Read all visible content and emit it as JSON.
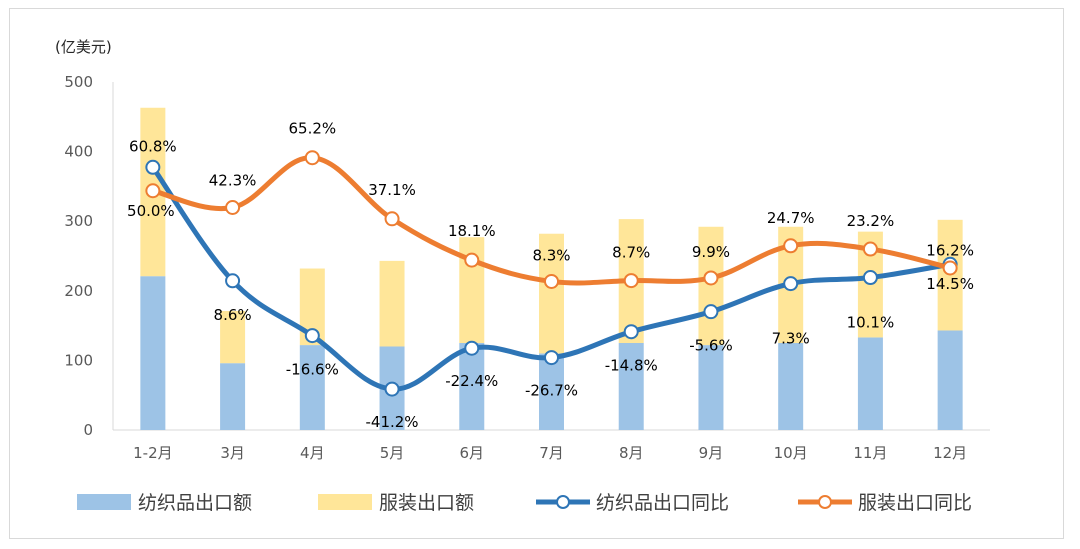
{
  "chart_data": {
    "type": "bar+line",
    "unit_label": "(亿美元)",
    "categories": [
      "1-2月",
      "3月",
      "4月",
      "5月",
      "6月",
      "7月",
      "8月",
      "9月",
      "10月",
      "11月",
      "12月"
    ],
    "ylim": [
      0,
      500
    ],
    "yticks": [
      0,
      100,
      200,
      300,
      400,
      500
    ],
    "y2lim": [
      -60,
      100
    ],
    "stacked_bars": [
      {
        "name": "纺织品出口额",
        "color": "#9dc3e6",
        "values": [
          221,
          96,
          122,
          120,
          125,
          110,
          125,
          122,
          125,
          133,
          143
        ]
      },
      {
        "name": "服装出口额",
        "color": "#ffe699",
        "values": [
          242,
          75,
          110,
          123,
          152,
          172,
          178,
          170,
          167,
          152,
          159
        ]
      }
    ],
    "lines": [
      {
        "name": "纺织品出口同比",
        "color": "#2e75b6",
        "values": [
          60.8,
          8.6,
          -16.6,
          -41.2,
          -22.4,
          -26.7,
          -14.8,
          -5.6,
          7.3,
          10.1,
          16.2
        ],
        "labels": [
          "60.8%",
          "8.6%",
          "-16.6%",
          "-41.2%",
          "-22.4%",
          "-26.7%",
          "-14.8%",
          "-5.6%",
          "7.3%",
          "10.1%",
          "16.2%"
        ]
      },
      {
        "name": "服装出口同比",
        "color": "#ed7d31",
        "values": [
          50.0,
          42.3,
          65.2,
          37.1,
          18.1,
          8.3,
          8.7,
          9.9,
          24.7,
          23.2,
          14.5
        ],
        "labels": [
          "50.0%",
          "42.3%",
          "65.2%",
          "37.1%",
          "18.1%",
          "8.3%",
          "8.7%",
          "9.9%",
          "24.7%",
          "23.2%",
          "14.5%"
        ]
      }
    ],
    "legend": {
      "position": "bottom",
      "items": [
        "纺织品出口额",
        "服装出口额",
        "纺织品出口同比",
        "服装出口同比"
      ]
    }
  }
}
